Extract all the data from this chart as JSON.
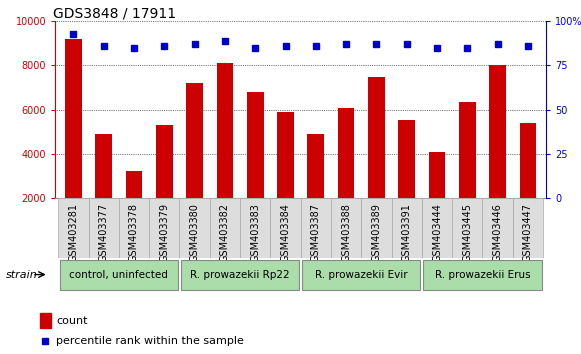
{
  "title": "GDS3848 / 17911",
  "categories": [
    "GSM403281",
    "GSM403377",
    "GSM403378",
    "GSM403379",
    "GSM403380",
    "GSM403382",
    "GSM403383",
    "GSM403384",
    "GSM403387",
    "GSM403388",
    "GSM403389",
    "GSM403391",
    "GSM403444",
    "GSM403445",
    "GSM403446",
    "GSM403447"
  ],
  "bar_values": [
    9200,
    4900,
    3250,
    5300,
    7200,
    8100,
    6800,
    5900,
    4900,
    6100,
    7500,
    5550,
    4100,
    6350,
    8000,
    5400
  ],
  "dot_values": [
    93,
    86,
    85,
    86,
    87,
    89,
    85,
    86,
    86,
    87,
    87,
    87,
    85,
    85,
    87,
    86
  ],
  "bar_color": "#cc0000",
  "dot_color": "#0000cc",
  "ylim_left": [
    2000,
    10000
  ],
  "ylim_right": [
    0,
    100
  ],
  "yticks_left": [
    2000,
    4000,
    6000,
    8000,
    10000
  ],
  "yticks_right": [
    0,
    25,
    50,
    75,
    100
  ],
  "groups": [
    {
      "label": "control, uninfected",
      "start": 0,
      "end": 3
    },
    {
      "label": "R. prowazekii Rp22",
      "start": 4,
      "end": 7
    },
    {
      "label": "R. prowazekii Evir",
      "start": 8,
      "end": 11
    },
    {
      "label": "R. prowazekii Erus",
      "start": 12,
      "end": 15
    }
  ],
  "group_color": "#aaddaa",
  "group_border_color": "#888888",
  "bg_color": "#e8e8e8",
  "strain_label": "strain",
  "legend_count_label": "count",
  "legend_pct_label": "percentile rank within the sample",
  "title_fontsize": 10,
  "tick_fontsize": 7,
  "group_fontsize": 7.5,
  "legend_fontsize": 8,
  "axis_color_left": "#cc0000",
  "axis_color_right": "#0000cc",
  "grid_color": "#000000",
  "xlim": [
    -0.6,
    15.6
  ]
}
